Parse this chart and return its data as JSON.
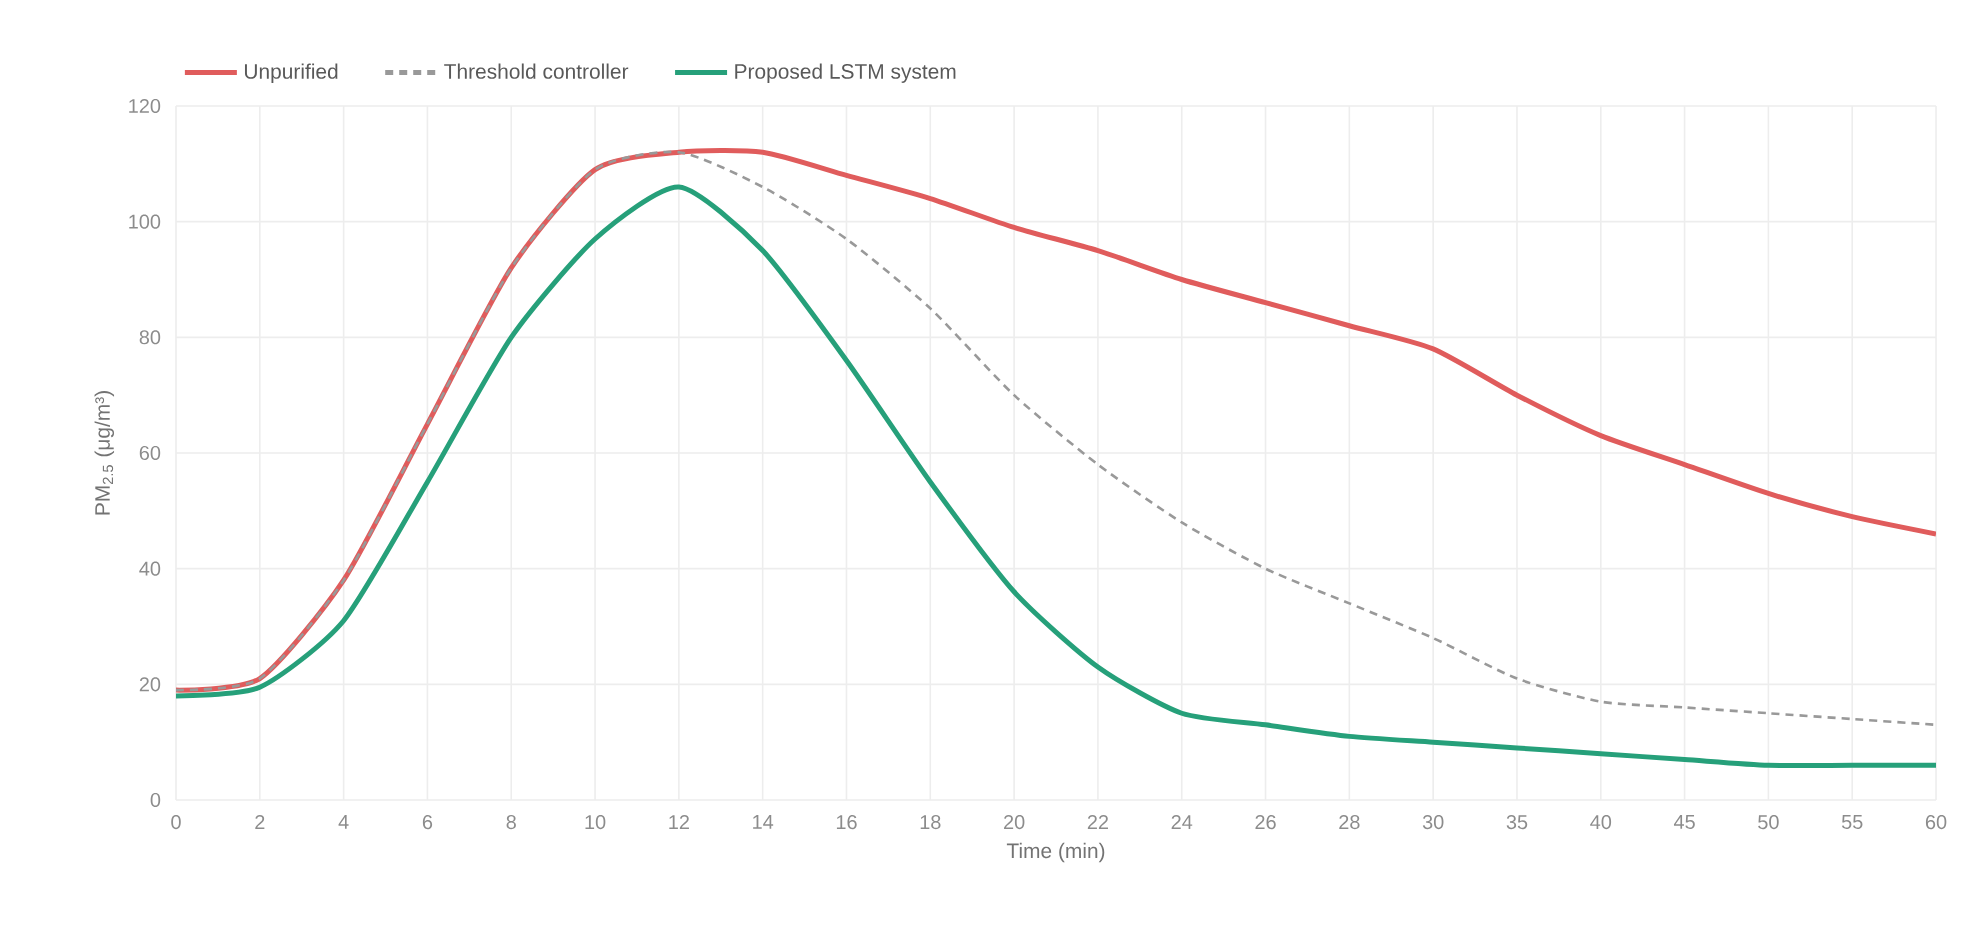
{
  "chart_data": {
    "type": "line",
    "xlabel": "Time (min)",
    "ylabel": "PM$_{2.5}$ (μg/m³)",
    "categories": [
      "0",
      "2",
      "4",
      "6",
      "8",
      "10",
      "12",
      "14",
      "16",
      "18",
      "20",
      "22",
      "24",
      "26",
      "28",
      "30",
      "35",
      "40",
      "45",
      "50",
      "55",
      "60"
    ],
    "series": [
      {
        "name": "Unpurified",
        "color": "#e05c5c",
        "line_style": "solid",
        "values": [
          19,
          21,
          38,
          65,
          92,
          109,
          112,
          112,
          108,
          104,
          99,
          95,
          90,
          86,
          82,
          78,
          70,
          63,
          58,
          53,
          49,
          46
        ]
      },
      {
        "name": "Threshold controller",
        "color": "#999999",
        "line_style": "dashed",
        "values": [
          19,
          21,
          38,
          65,
          92,
          109,
          112,
          106,
          97,
          85,
          70,
          58,
          48,
          40,
          34,
          28,
          21,
          17,
          16,
          15,
          14,
          13
        ]
      },
      {
        "name": "Proposed LSTM system",
        "color": "#26a07a",
        "line_style": "solid",
        "values": [
          18,
          19.5,
          31,
          55,
          80,
          97,
          106,
          95,
          76,
          55,
          36,
          23,
          15,
          13,
          11,
          10,
          9,
          8,
          7,
          6,
          6,
          6
        ]
      }
    ],
    "ylim": [
      0,
      120
    ],
    "yticks": [
      0,
      20,
      40,
      60,
      80,
      100,
      120
    ],
    "grid": true,
    "legend": "top left",
    "marker": "none"
  }
}
